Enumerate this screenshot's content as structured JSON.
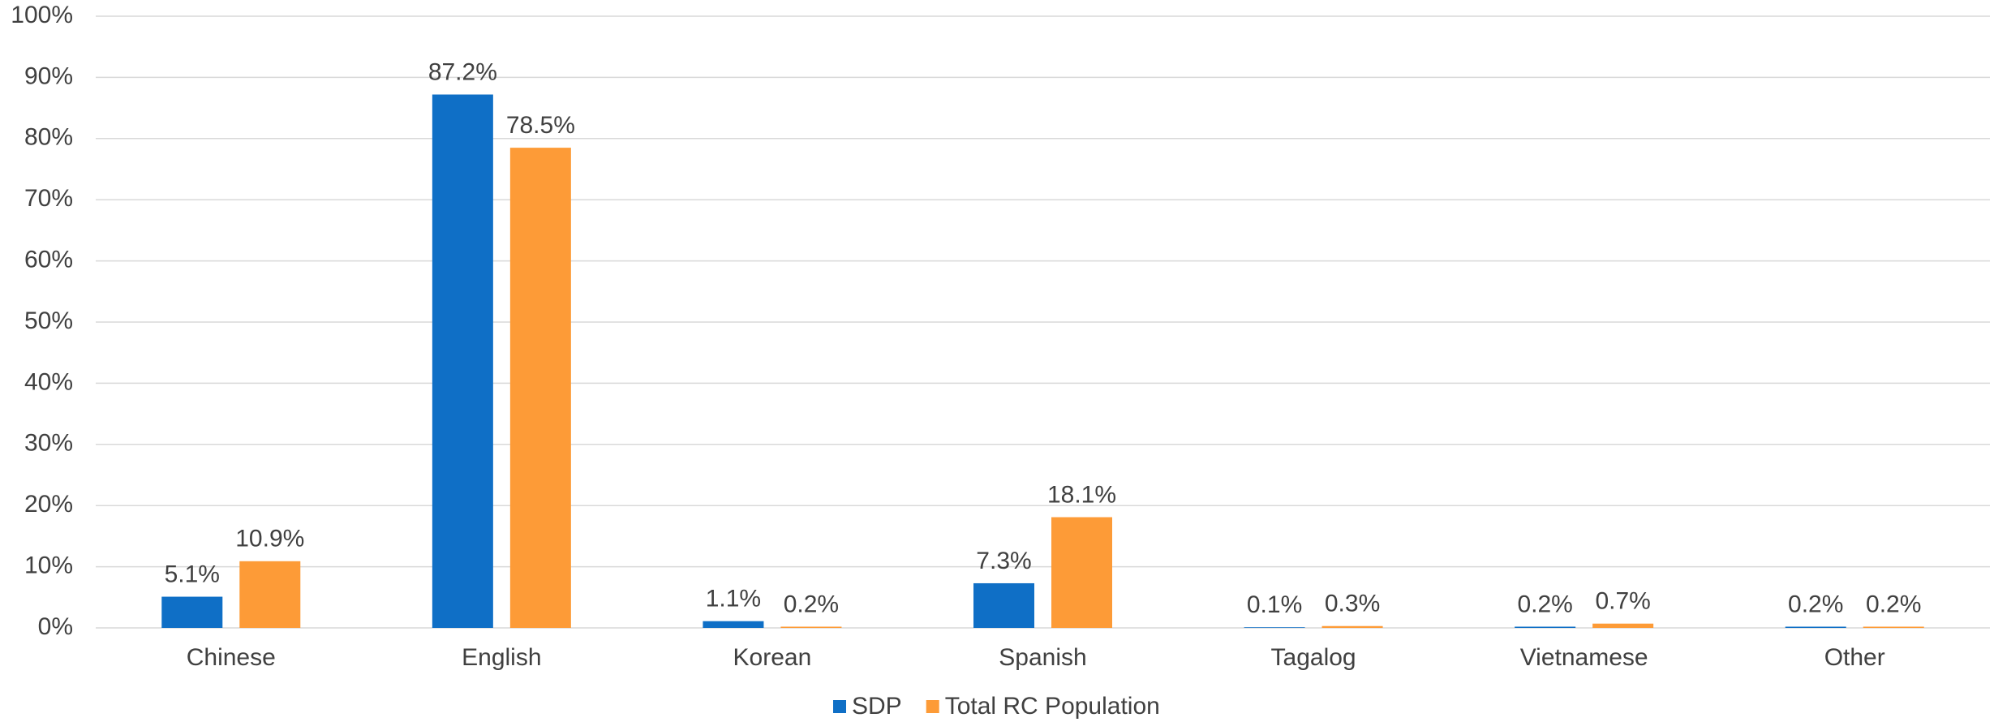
{
  "chart_data": {
    "type": "bar",
    "categories": [
      "Chinese",
      "English",
      "Korean",
      "Spanish",
      "Tagalog",
      "Vietnamese",
      "Other"
    ],
    "series": [
      {
        "name": "SDP",
        "color": "#0f6fc6",
        "values": [
          5.1,
          87.2,
          1.1,
          7.3,
          0.1,
          0.2,
          0.2
        ],
        "value_labels": [
          "5.1%",
          "87.2%",
          "1.1%",
          "7.3%",
          "0.1%",
          "0.2%",
          "0.2%"
        ]
      },
      {
        "name": "Total RC Population",
        "color": "#fd9b37",
        "values": [
          10.9,
          78.5,
          0.2,
          18.1,
          0.3,
          0.7,
          0.2
        ],
        "value_labels": [
          "10.9%",
          "78.5%",
          "0.2%",
          "18.1%",
          "0.3%",
          "0.7%",
          "0.2%"
        ]
      }
    ],
    "ylim": [
      0,
      100
    ],
    "yticks": [
      {
        "value": 0,
        "label": "0%"
      },
      {
        "value": 10,
        "label": "10%"
      },
      {
        "value": 20,
        "label": "20%"
      },
      {
        "value": 30,
        "label": "30%"
      },
      {
        "value": 40,
        "label": "40%"
      },
      {
        "value": 50,
        "label": "50%"
      },
      {
        "value": 60,
        "label": "60%"
      },
      {
        "value": 70,
        "label": "70%"
      },
      {
        "value": 80,
        "label": "80%"
      },
      {
        "value": 90,
        "label": "90%"
      },
      {
        "value": 100,
        "label": "100%"
      }
    ],
    "grid": true,
    "legend": "bottom"
  }
}
